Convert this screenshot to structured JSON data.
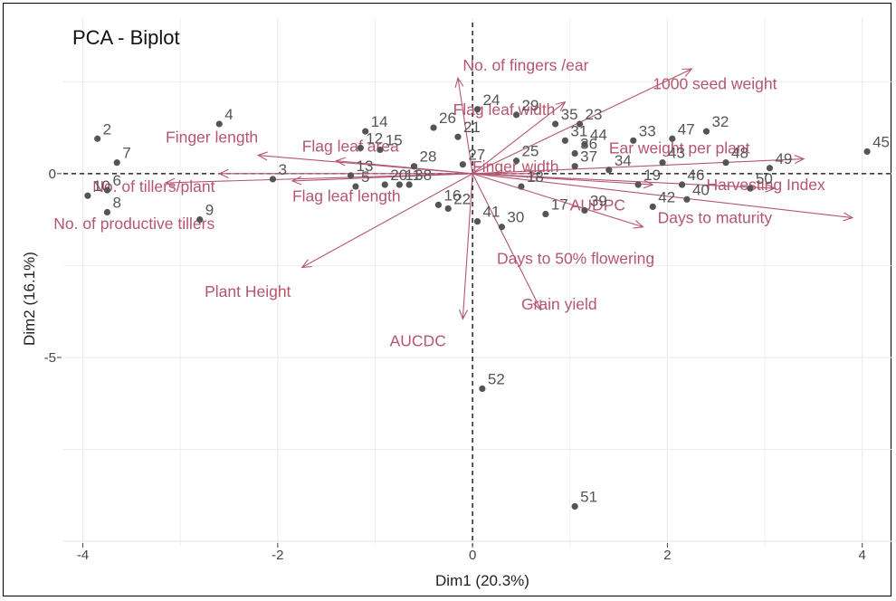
{
  "chart_data": {
    "type": "scatter",
    "title": "PCA - Biplot",
    "xlabel": "Dim1 (20.3%)",
    "ylabel": "Dim2 (16.1%)",
    "xlim": [
      -4.2,
      4.3
    ],
    "ylim": [
      -10.0,
      3.0
    ],
    "xticks": [
      -4,
      -2,
      0,
      2,
      4
    ],
    "xtick_labels": [
      "-4",
      "-2",
      "0",
      "2",
      "4"
    ],
    "yticks": [
      -5,
      0
    ],
    "ytick_labels": [
      "-5",
      "0"
    ],
    "grid": true,
    "colors": {
      "points": "#555555",
      "vectors": "#b5566e",
      "grid": "#ebebeb",
      "zero_line": "#000000"
    },
    "points": [
      {
        "label": "2",
        "x": -3.85,
        "y": 0.95
      },
      {
        "label": "4",
        "x": -2.6,
        "y": 1.35
      },
      {
        "label": "7",
        "x": -3.65,
        "y": 0.3
      },
      {
        "label": "6",
        "x": -3.75,
        "y": -0.45
      },
      {
        "label": "10",
        "x": -3.95,
        "y": -0.6
      },
      {
        "label": "8",
        "x": -3.75,
        "y": -1.05
      },
      {
        "label": "9",
        "x": -2.8,
        "y": -1.25
      },
      {
        "label": "3",
        "x": -2.05,
        "y": -0.15
      },
      {
        "label": "14",
        "x": -1.1,
        "y": 1.15
      },
      {
        "label": "12",
        "x": -1.15,
        "y": 0.7
      },
      {
        "label": "15",
        "x": -0.95,
        "y": 0.65
      },
      {
        "label": "13",
        "x": -1.25,
        "y": -0.05
      },
      {
        "label": "20",
        "x": -0.9,
        "y": -0.3
      },
      {
        "label": "5",
        "x": -1.2,
        "y": -0.35
      },
      {
        "label": "11",
        "x": -0.75,
        "y": -0.3
      },
      {
        "label": "28",
        "x": -0.6,
        "y": 0.2
      },
      {
        "label": "38",
        "x": -0.65,
        "y": -0.3
      },
      {
        "label": "26",
        "x": -0.4,
        "y": 1.25
      },
      {
        "label": "21",
        "x": -0.15,
        "y": 1.0
      },
      {
        "label": "24",
        "x": 0.05,
        "y": 1.75
      },
      {
        "label": "27",
        "x": -0.1,
        "y": 0.25
      },
      {
        "label": "22",
        "x": -0.25,
        "y": -0.95
      },
      {
        "label": "16",
        "x": -0.35,
        "y": -0.85
      },
      {
        "label": "41",
        "x": 0.05,
        "y": -1.3
      },
      {
        "label": "29",
        "x": 0.45,
        "y": 1.6
      },
      {
        "label": "35",
        "x": 0.85,
        "y": 1.35
      },
      {
        "label": "23",
        "x": 1.1,
        "y": 1.35
      },
      {
        "label": "31",
        "x": 0.95,
        "y": 0.9
      },
      {
        "label": "36",
        "x": 1.05,
        "y": 0.55
      },
      {
        "label": "44",
        "x": 1.15,
        "y": 0.8
      },
      {
        "label": "25",
        "x": 0.45,
        "y": 0.35
      },
      {
        "label": "33",
        "x": 1.65,
        "y": 0.9
      },
      {
        "label": "37",
        "x": 1.05,
        "y": 0.2
      },
      {
        "label": "34",
        "x": 1.4,
        "y": 0.1
      },
      {
        "label": "18",
        "x": 0.5,
        "y": -0.35
      },
      {
        "label": "17",
        "x": 0.75,
        "y": -1.1
      },
      {
        "label": "30",
        "x": 0.3,
        "y": -1.45
      },
      {
        "label": "39",
        "x": 1.15,
        "y": -1.0
      },
      {
        "label": "19",
        "x": 1.7,
        "y": -0.3
      },
      {
        "label": "42",
        "x": 1.85,
        "y": -0.9
      },
      {
        "label": "43",
        "x": 1.95,
        "y": 0.3
      },
      {
        "label": "47",
        "x": 2.05,
        "y": 0.95
      },
      {
        "label": "46",
        "x": 2.15,
        "y": -0.3
      },
      {
        "label": "40",
        "x": 2.2,
        "y": -0.7
      },
      {
        "label": "32",
        "x": 2.4,
        "y": 1.15
      },
      {
        "label": "48",
        "x": 2.6,
        "y": 0.3
      },
      {
        "label": "50",
        "x": 2.85,
        "y": -0.4
      },
      {
        "label": "49",
        "x": 3.05,
        "y": 0.15
      },
      {
        "label": "45",
        "x": 4.05,
        "y": 0.6
      },
      {
        "label": "52",
        "x": 0.1,
        "y": -5.85
      },
      {
        "label": "51",
        "x": 1.05,
        "y": -9.05
      }
    ],
    "vectors": [
      {
        "name": "No. of fingers /ear",
        "x": -0.15,
        "y": 2.6
      },
      {
        "name": "Flag leaf width",
        "x": 0.95,
        "y": 1.95
      },
      {
        "name": "1000 seed weight",
        "x": 2.25,
        "y": 2.85
      },
      {
        "name": "Finger length",
        "x": -2.2,
        "y": 0.5
      },
      {
        "name": "Flag leaf area",
        "x": -1.4,
        "y": 0.35
      },
      {
        "name": "Ear weight per plant",
        "x": 3.4,
        "y": 0.4
      },
      {
        "name": "No. of tillers/plant",
        "x": -2.6,
        "y": 0.0
      },
      {
        "name": "No. of productive tillers",
        "x": -3.15,
        "y": -0.25
      },
      {
        "name": "Flag leaf length",
        "x": -1.85,
        "y": -0.2
      },
      {
        "name": "Finger width",
        "x": 0.65,
        "y": 0.0
      },
      {
        "name": "Harvesting Index",
        "x": 3.1,
        "y": -0.4
      },
      {
        "name": "AUDPC",
        "x": 1.85,
        "y": -0.3
      },
      {
        "name": "Days to maturity",
        "x": 3.9,
        "y": -1.2
      },
      {
        "name": "Days to 50% flowering",
        "x": 1.75,
        "y": -1.45
      },
      {
        "name": "Plant Height",
        "x": -1.75,
        "y": -2.55
      },
      {
        "name": "Grain yield",
        "x": 0.7,
        "y": -3.7
      },
      {
        "name": "AUCDC",
        "x": -0.1,
        "y": -3.95
      }
    ],
    "vector_labels": [
      {
        "name": "No. of fingers /ear",
        "x": -0.1,
        "y": 2.8
      },
      {
        "name": "Flag leaf width",
        "x": -0.2,
        "y": 1.6
      },
      {
        "name": "1000 seed weight",
        "x": 1.85,
        "y": 2.3
      },
      {
        "name": "Finger length",
        "x": -3.15,
        "y": 0.85
      },
      {
        "name": "Flag leaf area",
        "x": -1.75,
        "y": 0.6
      },
      {
        "name": "Ear weight per plant",
        "x": 1.4,
        "y": 0.55
      },
      {
        "name": "No. of tillers/plant",
        "x": -3.9,
        "y": -0.5
      },
      {
        "name": "No. of productive tillers",
        "x": -4.3,
        "y": -1.5
      },
      {
        "name": "Flag leaf length",
        "x": -1.85,
        "y": -0.75
      },
      {
        "name": "Finger width",
        "x": 0.0,
        "y": 0.05
      },
      {
        "name": "Harvesting Index",
        "x": 2.4,
        "y": -0.45
      },
      {
        "name": "AUDPC",
        "x": 1.0,
        "y": -1.0
      },
      {
        "name": "Days to maturity",
        "x": 1.9,
        "y": -1.35
      },
      {
        "name": "Days to 50% flowering",
        "x": 0.25,
        "y": -2.45
      },
      {
        "name": "Plant Height",
        "x": -2.75,
        "y": -3.35
      },
      {
        "name": "Grain yield",
        "x": 0.5,
        "y": -3.7
      },
      {
        "name": "AUCDC",
        "x": -0.85,
        "y": -4.7
      }
    ]
  }
}
